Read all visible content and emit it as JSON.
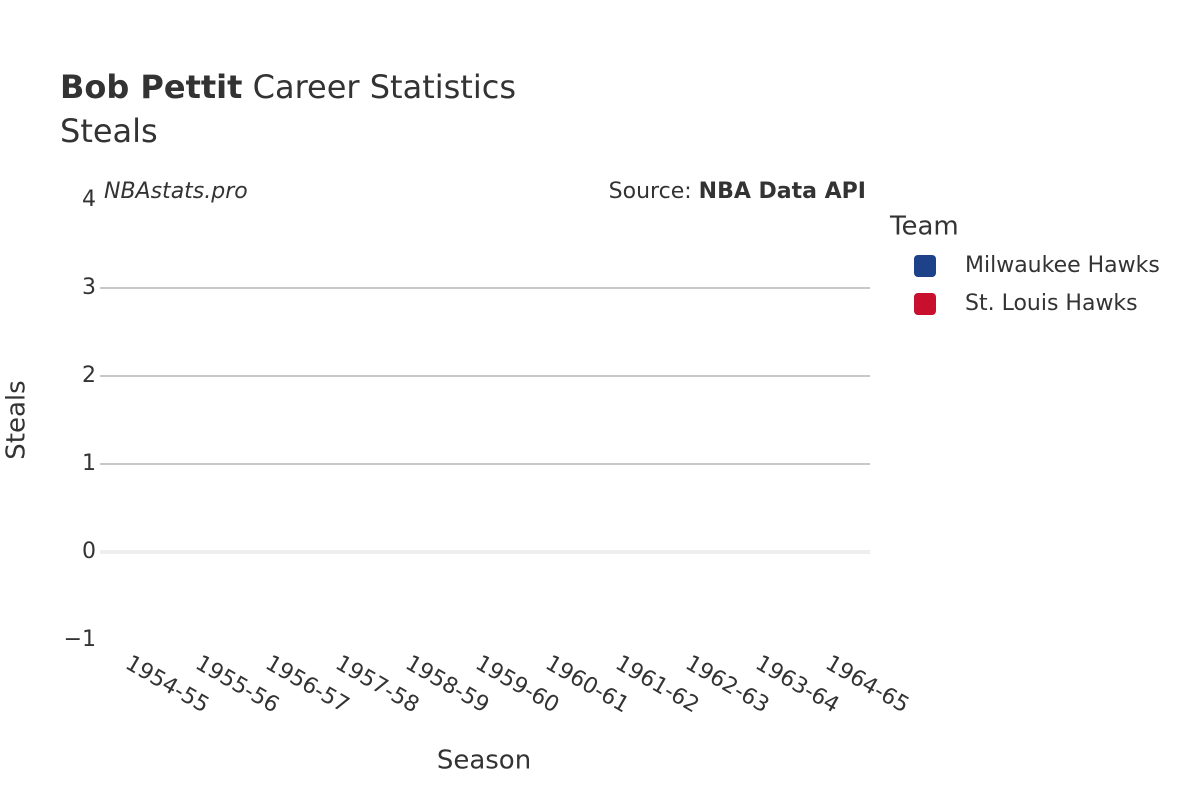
{
  "chart_data": {
    "type": "bar",
    "title": {
      "bold": "Bob Pettit",
      "rest": "Career Statistics"
    },
    "subtitle": "Steals",
    "watermark": "NBAstats.pro",
    "source": {
      "label": "Source:",
      "name": "NBA Data API"
    },
    "x_label": "Season",
    "y_label": "Steals",
    "legend_title": "Team",
    "legend_position": "right",
    "categories": [
      "1954-55",
      "1955-56",
      "1956-57",
      "1957-58",
      "1958-59",
      "1959-60",
      "1960-61",
      "1961-62",
      "1962-63",
      "1963-64",
      "1964-65"
    ],
    "series": [
      {
        "name": "Milwaukee Hawks",
        "color": "#1d428a",
        "values": [
          null,
          null,
          null,
          null,
          null,
          null,
          null,
          null,
          null,
          null,
          null
        ]
      },
      {
        "name": "St. Louis Hawks",
        "color": "#c8102e",
        "values": [
          null,
          null,
          null,
          null,
          null,
          null,
          null,
          null,
          null,
          null,
          null
        ]
      }
    ],
    "ylim": [
      -1,
      4
    ],
    "yticks": [
      {
        "value": -1,
        "label": "−1"
      },
      0,
      1,
      2,
      3,
      4
    ],
    "grid": true
  }
}
